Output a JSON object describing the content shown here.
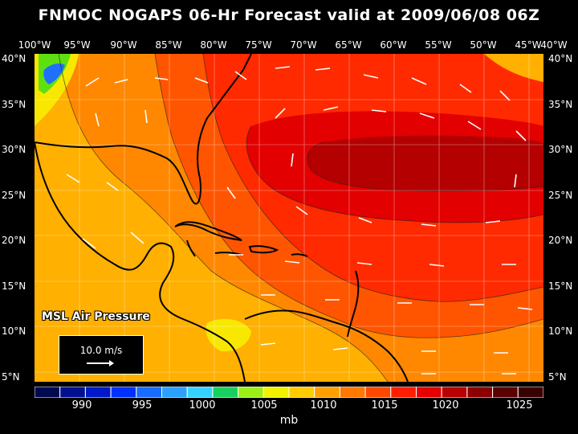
{
  "title": "FNMOC NOGAPS 06-Hr Forecast valid at 2009/06/08 06Z",
  "lon_labels": [
    "100°W",
    "95°W",
    "90°W",
    "85°W",
    "80°W",
    "75°W",
    "70°W",
    "65°W",
    "60°W",
    "55°W",
    "50°W",
    "45°W",
    "40°W"
  ],
  "lat_labels": [
    "40°N",
    "35°N",
    "30°N",
    "25°N",
    "20°N",
    "15°N",
    "10°N",
    "5°N"
  ],
  "field_label": "MSL Air Pressure",
  "vector_ref": "10.0 m/s",
  "colorbar": {
    "labels": [
      "990",
      "995",
      "1000",
      "1005",
      "1010",
      "1015",
      "1020",
      "1025"
    ],
    "unit": "mb",
    "colors": [
      "#000a50",
      "#001090",
      "#0018c8",
      "#0030ff",
      "#1a6cff",
      "#2aa0ff",
      "#35d2ff",
      "#18d060",
      "#9cee18",
      "#f2f200",
      "#ffcc00",
      "#ffa000",
      "#ff7800",
      "#ff4800",
      "#ff1e00",
      "#e60000",
      "#b90000",
      "#8c0000",
      "#5a0000",
      "#3a0000"
    ]
  },
  "map_colors": {
    "ocean_1010": "#ffb000",
    "ocean_1012": "#ff8800",
    "ocean_1015": "#ff5500",
    "ocean_1018": "#ff2a00",
    "high_1021": "#e20000",
    "high_1024": "#b40000",
    "low_yellow": "#f8e800",
    "low_green": "#5ee010",
    "low_blue": "#2070ff"
  }
}
